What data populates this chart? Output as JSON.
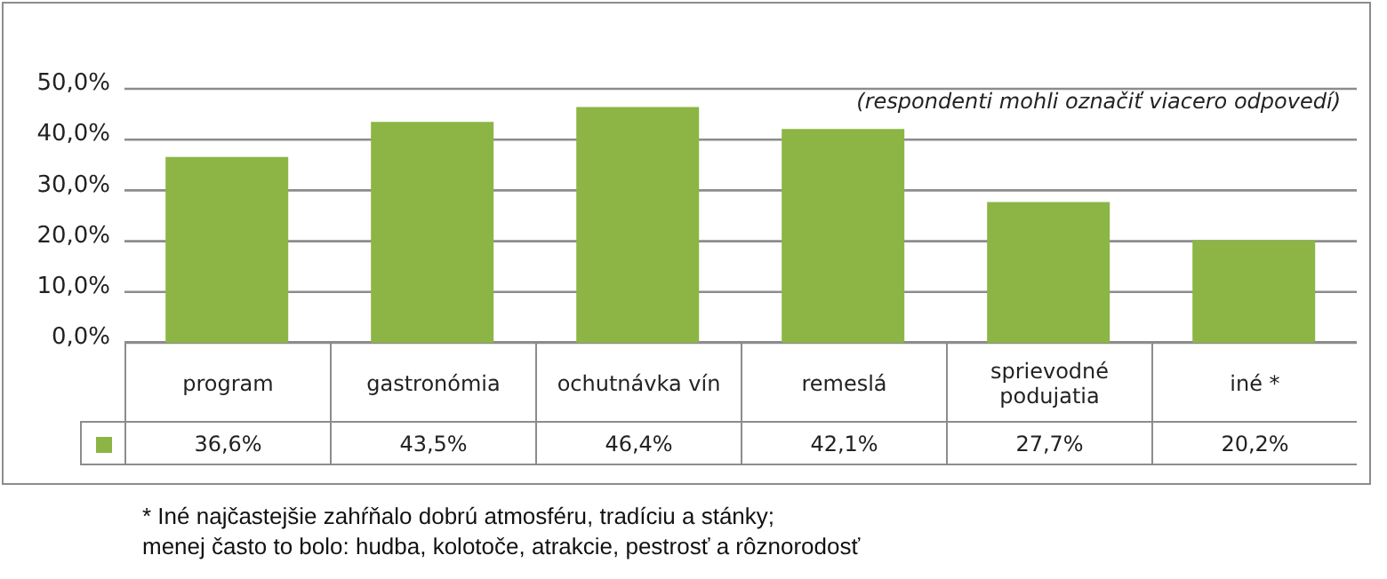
{
  "chart_data": {
    "type": "bar",
    "categories": [
      "program",
      "gastronómia",
      "ochutnávka vín",
      "remeslá",
      "sprievodné podujatia",
      "iné *"
    ],
    "values": [
      36.6,
      43.5,
      46.4,
      42.1,
      27.7,
      20.2
    ],
    "value_labels": [
      "36,6%",
      "43,5%",
      "46,4%",
      "42,1%",
      "27,7%",
      "20,2%"
    ],
    "color": "#8cb545",
    "ylim": [
      0,
      50
    ],
    "yticks": [
      {
        "value": 0,
        "label": "0,0%"
      },
      {
        "value": 10,
        "label": "10,0%"
      },
      {
        "value": 20,
        "label": "20,0%"
      },
      {
        "value": 30,
        "label": "30,0%"
      },
      {
        "value": 40,
        "label": "40,0%"
      },
      {
        "value": 50,
        "label": "50,0%"
      }
    ],
    "grid": "y",
    "legend": false,
    "annotations": [
      "(respondenti mohli označiť viacero odpovedí)",
      "* Iné najčastejšie zahŕňalo dobrú atmosféru, tradíciu a stánky;\nmenej často to bolo: hudba, kolotoče, atrakcie, pestrosť a rôznorodosť"
    ]
  }
}
